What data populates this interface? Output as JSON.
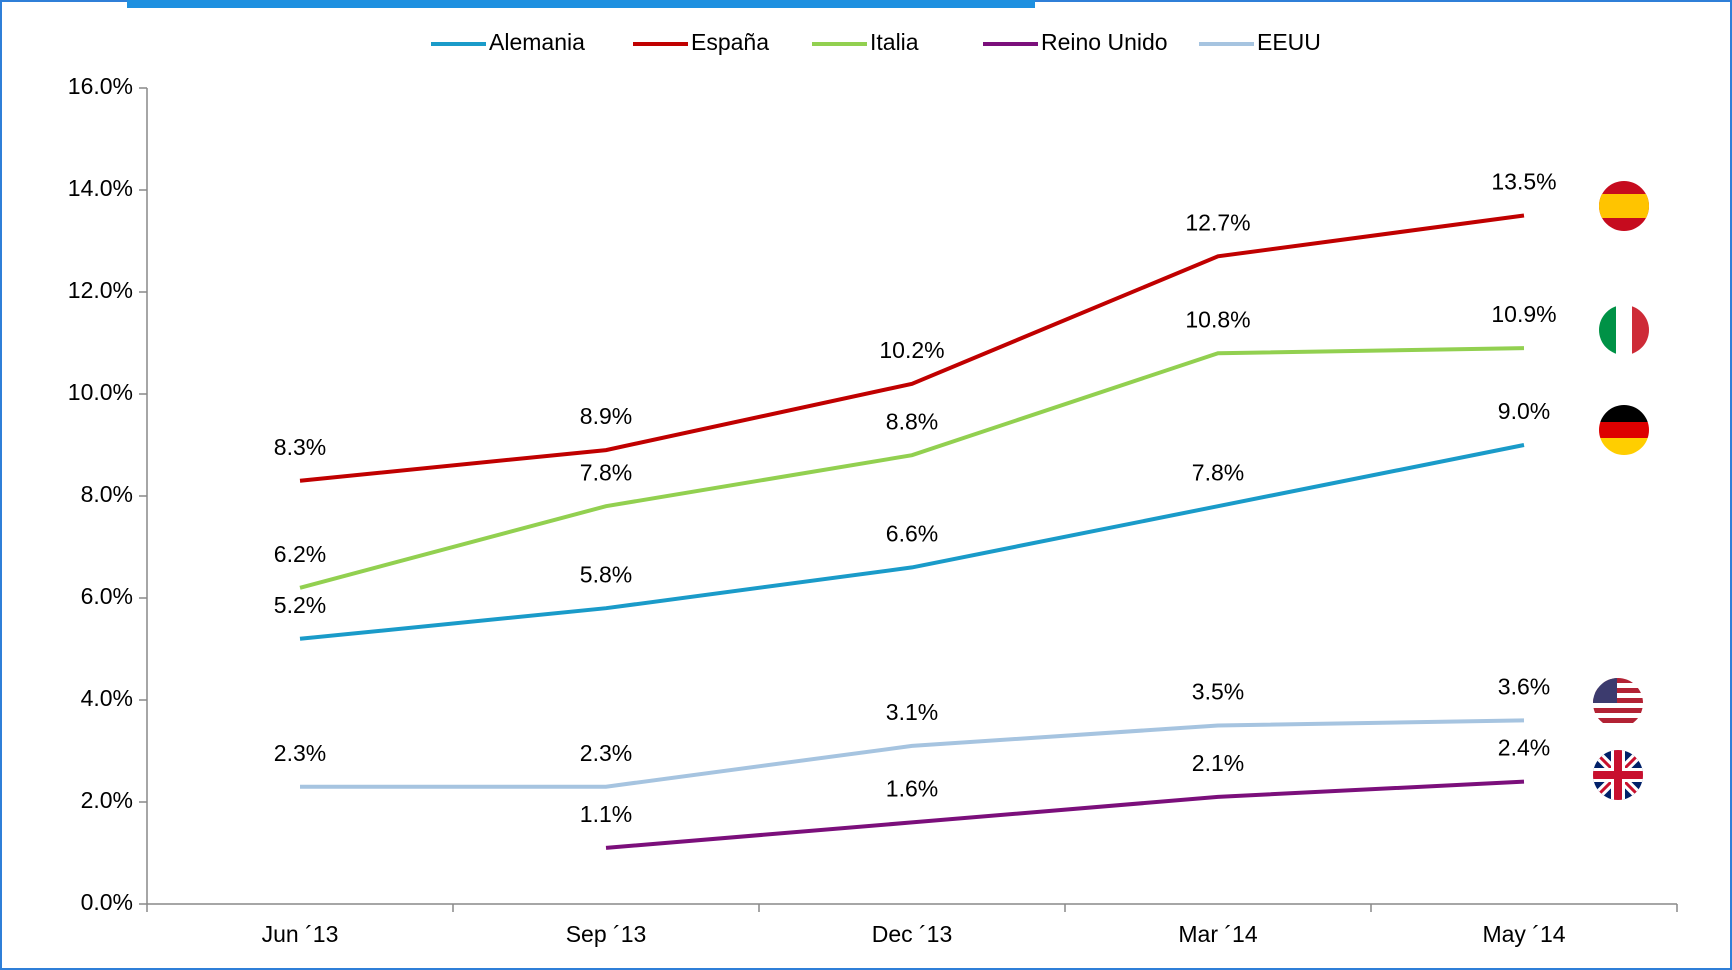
{
  "chart_data": {
    "type": "line",
    "categories": [
      "Jun ´13",
      "Sep ´13",
      "Dec ´13",
      "Mar ´14",
      "May ´14"
    ],
    "series": [
      {
        "name": "Alemania",
        "color": "#1a9bc9",
        "values": [
          5.2,
          5.8,
          6.6,
          7.8,
          9.0
        ],
        "value_labels": [
          "5.2%",
          "5.8%",
          "6.6%",
          "7.8%",
          "9.0%"
        ]
      },
      {
        "name": "España",
        "color": "#c00000",
        "values": [
          8.3,
          8.9,
          10.2,
          12.7,
          13.5
        ],
        "value_labels": [
          "8.3%",
          "8.9%",
          "10.2%",
          "12.7%",
          "13.5%"
        ]
      },
      {
        "name": "Italia",
        "color": "#92d050",
        "values": [
          6.2,
          7.8,
          8.8,
          10.8,
          10.9
        ],
        "value_labels": [
          "6.2%",
          "7.8%",
          "8.8%",
          "10.8%",
          "10.9%"
        ]
      },
      {
        "name": "Reino Unido",
        "color": "#7b0f7b",
        "values": [
          null,
          1.1,
          1.6,
          2.1,
          2.4
        ],
        "value_labels": [
          null,
          "1.1%",
          "1.6%",
          "2.1%",
          "2.4%"
        ]
      },
      {
        "name": "EEUU",
        "color": "#a6c4e0",
        "values": [
          2.3,
          2.3,
          3.1,
          3.5,
          3.6
        ],
        "value_labels": [
          "2.3%",
          "2.3%",
          "3.1%",
          "3.5%",
          "3.6%"
        ]
      }
    ],
    "ylim": [
      0,
      16
    ],
    "yticks": [
      {
        "value": 0,
        "label": "0.0%"
      },
      {
        "value": 2,
        "label": "2.0%"
      },
      {
        "value": 4,
        "label": "4.0%"
      },
      {
        "value": 6,
        "label": "6.0%"
      },
      {
        "value": 8,
        "label": "8.0%"
      },
      {
        "value": 10,
        "label": "10.0%"
      },
      {
        "value": 12,
        "label": "12.0%"
      },
      {
        "value": 14,
        "label": "14.0%"
      },
      {
        "value": 16,
        "label": "16.0%"
      }
    ],
    "legend": "top",
    "grid": false
  }
}
